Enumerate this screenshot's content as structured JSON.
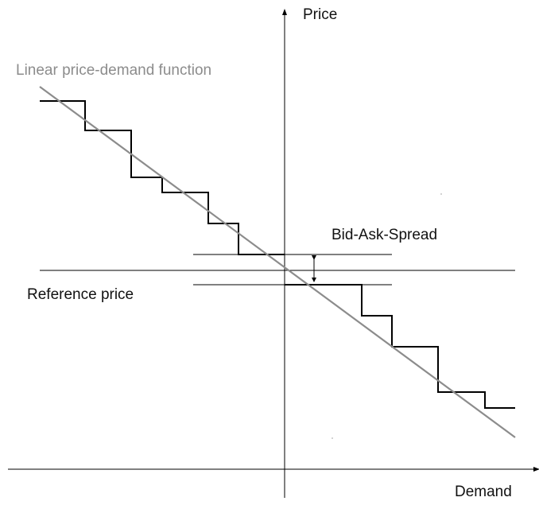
{
  "diagram": {
    "y_axis_label": "Price",
    "x_axis_label": "Demand",
    "linear_function_label": "Linear price-demand function",
    "spread_label": "Bid-Ask-Spread",
    "reference_price_label": "Reference price"
  },
  "colors": {
    "axis": "#000000",
    "step_function": "#000000",
    "linear_function": "#8c8c8c",
    "price_lines": "#000000"
  }
}
